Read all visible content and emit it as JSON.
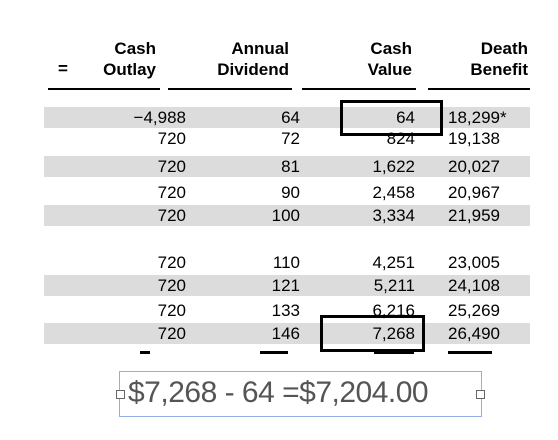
{
  "headers": {
    "eq_sign": "=",
    "cash_outlay": [
      "Cash",
      "Outlay"
    ],
    "annual_dividend": [
      "Annual",
      "Dividend"
    ],
    "cash_value": [
      "Cash",
      "Value"
    ],
    "death_benefit": [
      "Death",
      "Benefit"
    ]
  },
  "group1": [
    {
      "outlay": "−4,988",
      "dividend": "64",
      "cash_value": "64",
      "death_benefit": "18,299*"
    },
    {
      "outlay": "720",
      "dividend": "72",
      "cash_value": "824",
      "death_benefit": "19,138"
    },
    {
      "outlay": "720",
      "dividend": "81",
      "cash_value": "1,622",
      "death_benefit": "20,027"
    },
    {
      "outlay": "720",
      "dividend": "90",
      "cash_value": "2,458",
      "death_benefit": "20,967"
    },
    {
      "outlay": "720",
      "dividend": "100",
      "cash_value": "3,334",
      "death_benefit": "21,959"
    }
  ],
  "group2": [
    {
      "outlay": "720",
      "dividend": "110",
      "cash_value": "4,251",
      "death_benefit": "23,005"
    },
    {
      "outlay": "720",
      "dividend": "121",
      "cash_value": "5,211",
      "death_benefit": "24,108"
    },
    {
      "outlay": "720",
      "dividend": "133",
      "cash_value": "6,216",
      "death_benefit": "25,269"
    },
    {
      "outlay": "720",
      "dividend": "146",
      "cash_value": "7,268",
      "death_benefit": "26,490"
    }
  ],
  "calculation": "$7,268 - 64 =$7,204.00"
}
